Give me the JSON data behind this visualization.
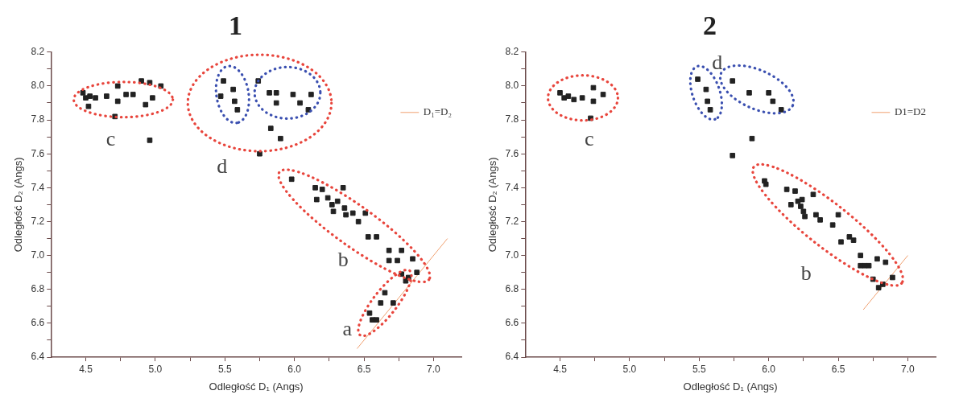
{
  "chart_data": [
    {
      "type": "scatter",
      "title": "1",
      "xlabel": "Odległość D₁ (Angs)",
      "ylabel": "Odległość D₂ (Angs)",
      "xlim": [
        4.25,
        7.2
      ],
      "ylim": [
        6.4,
        8.2
      ],
      "xticks": [
        4.5,
        {
          "value": 4.75,
          "label": null
        },
        {
          "value": 5,
          "label": "5.0"
        },
        {
          "value": 5.25,
          "label": null
        },
        5.5,
        {
          "value": 5.75,
          "label": null
        },
        {
          "value": 6,
          "label": "6.0"
        },
        {
          "value": 6.25,
          "label": null
        },
        6.5,
        {
          "value": 6.75,
          "label": null
        },
        {
          "value": 7,
          "label": "7.0"
        }
      ],
      "yticks": [
        6.4,
        {
          "value": 6.5,
          "label": null
        },
        6.6,
        {
          "value": 6.7,
          "label": null
        },
        6.8,
        {
          "value": 6.9,
          "label": null
        },
        {
          "value": 7,
          "label": "7.0"
        },
        {
          "value": 7.1,
          "label": null
        },
        7.2,
        {
          "value": 7.3,
          "label": null
        },
        7.4,
        {
          "value": 7.5,
          "label": null
        },
        7.6,
        {
          "value": 7.7,
          "label": null
        },
        7.8,
        {
          "value": 7.9,
          "label": null
        },
        {
          "value": 8,
          "label": "8.0"
        },
        {
          "value": 8.1,
          "label": null
        },
        8.2
      ],
      "grid": false,
      "legend": "top right",
      "annotations": [
        "c",
        "d",
        "b",
        "a"
      ],
      "series": [
        {
          "type": "scatter",
          "color": "#222222",
          "marker": "square",
          "x": [
            4.48,
            4.5,
            4.53,
            4.52,
            4.57,
            4.65,
            4.73,
            4.73,
            4.71,
            4.79,
            4.84,
            4.9,
            4.96,
            5.04,
            4.93,
            4.98,
            4.96,
            5.49,
            5.56,
            5.47,
            5.57,
            5.59,
            5.74,
            5.82,
            5.87,
            5.87,
            5.83,
            5.9,
            5.75,
            5.99,
            6.04,
            6.12,
            6.1,
            5.98,
            6.15,
            6.2,
            6.35,
            6.16,
            6.24,
            6.27,
            6.31,
            6.28,
            6.36,
            6.37,
            6.42,
            6.46,
            6.51,
            6.53,
            6.59,
            6.68,
            6.77,
            6.68,
            6.74,
            6.85,
            6.77,
            6.82,
            6.88,
            6.8,
            6.65,
            6.62,
            6.71,
            6.54,
            6.56,
            6.59
          ],
          "values": [
            7.96,
            7.93,
            7.94,
            7.88,
            7.93,
            7.94,
            8.0,
            7.91,
            7.82,
            7.95,
            7.95,
            8.03,
            8.02,
            8.0,
            7.89,
            7.93,
            7.68,
            8.03,
            7.98,
            7.94,
            7.91,
            7.86,
            8.03,
            7.96,
            7.96,
            7.9,
            7.75,
            7.69,
            7.6,
            7.95,
            7.9,
            7.95,
            7.86,
            7.45,
            7.4,
            7.39,
            7.4,
            7.33,
            7.34,
            7.3,
            7.32,
            7.26,
            7.28,
            7.24,
            7.25,
            7.2,
            7.25,
            7.11,
            7.11,
            7.03,
            7.03,
            6.97,
            6.97,
            6.98,
            6.89,
            6.87,
            6.9,
            6.85,
            6.78,
            6.72,
            6.72,
            6.66,
            6.62,
            6.62
          ]
        },
        {
          "type": "line",
          "name": "D₁=D₂",
          "color": "#f0a070",
          "marker": "none",
          "x": [
            6.45,
            7.1
          ],
          "values": [
            6.45,
            7.1
          ]
        }
      ]
    },
    {
      "type": "scatter",
      "title": "2",
      "xlabel": "Odległość D₁ (Angs)",
      "ylabel": "Odległość D₂ (Angs)",
      "xlim": [
        4.25,
        7.2
      ],
      "ylim": [
        6.4,
        8.2
      ],
      "xticks": [
        4.5,
        {
          "value": 4.75,
          "label": null
        },
        {
          "value": 5,
          "label": "5.0"
        },
        {
          "value": 5.25,
          "label": null
        },
        5.5,
        {
          "value": 5.75,
          "label": null
        },
        {
          "value": 6,
          "label": "6.0"
        },
        {
          "value": 6.25,
          "label": null
        },
        6.5,
        {
          "value": 6.75,
          "label": null
        },
        {
          "value": 7,
          "label": "7.0"
        }
      ],
      "yticks": [
        6.4,
        {
          "value": 6.5,
          "label": null
        },
        6.6,
        {
          "value": 6.7,
          "label": null
        },
        6.8,
        {
          "value": 6.9,
          "label": null
        },
        {
          "value": 7,
          "label": "7.0"
        },
        {
          "value": 7.1,
          "label": null
        },
        7.2,
        {
          "value": 7.3,
          "label": null
        },
        7.4,
        {
          "value": 7.5,
          "label": null
        },
        7.6,
        {
          "value": 7.7,
          "label": null
        },
        7.8,
        {
          "value": 7.9,
          "label": null
        },
        {
          "value": 8,
          "label": "8.0"
        },
        {
          "value": 8.1,
          "label": null
        },
        8.2
      ],
      "grid": false,
      "legend": "top right",
      "annotations": [
        "c",
        "d",
        "b"
      ],
      "series": [
        {
          "type": "scatter",
          "color": "#222222",
          "marker": "square",
          "x": [
            4.5,
            4.53,
            4.56,
            4.6,
            4.66,
            4.74,
            4.74,
            4.81,
            4.72,
            5.49,
            5.55,
            5.56,
            5.58,
            5.74,
            5.74,
            5.86,
            6.0,
            6.03,
            6.09,
            5.88,
            5.97,
            5.98,
            6.13,
            6.19,
            6.16,
            6.21,
            6.24,
            6.23,
            6.25,
            6.26,
            6.32,
            6.34,
            6.37,
            6.46,
            6.5,
            6.52,
            6.58,
            6.61,
            6.66,
            6.66,
            6.69,
            6.72,
            6.78,
            6.84,
            6.75,
            6.79,
            6.82,
            6.89
          ],
          "values": [
            7.96,
            7.93,
            7.94,
            7.92,
            7.93,
            7.99,
            7.91,
            7.95,
            7.81,
            8.04,
            7.98,
            7.91,
            7.86,
            8.03,
            7.59,
            7.96,
            7.96,
            7.91,
            7.86,
            7.69,
            7.44,
            7.42,
            7.39,
            7.38,
            7.3,
            7.32,
            7.33,
            7.29,
            7.26,
            7.23,
            7.36,
            7.24,
            7.21,
            7.18,
            7.24,
            7.08,
            7.11,
            7.09,
            7.0,
            6.94,
            6.94,
            6.94,
            6.98,
            6.96,
            6.86,
            6.81,
            6.83,
            6.87
          ]
        },
        {
          "type": "line",
          "name": "D1=D2",
          "color": "#f0a070",
          "marker": "none",
          "x": [
            6.68,
            7.0
          ],
          "values": [
            6.68,
            7.0
          ]
        }
      ]
    }
  ]
}
